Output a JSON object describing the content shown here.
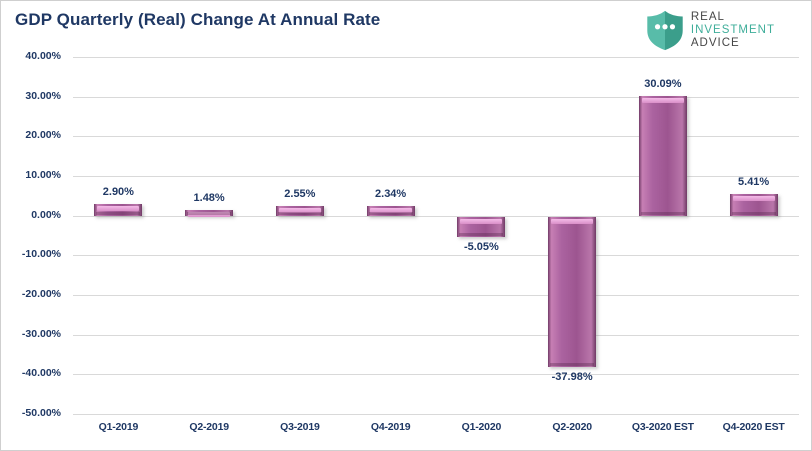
{
  "header": {
    "title": "GDP Quarterly (Real) Change At Annual Rate",
    "logo": {
      "line1": "REAL",
      "line2": "INVESTMENT",
      "line3": "ADVICE",
      "shield_color_left": "#58bca9",
      "shield_color_right": "#3b9e8b",
      "text_color_dark": "#474747",
      "text_color_teal": "#3fae9a"
    }
  },
  "chart_data": {
    "type": "bar",
    "title": "GDP Quarterly (Real) Change At Annual Rate",
    "categories": [
      "Q1-2019",
      "Q2-2019",
      "Q3-2019",
      "Q4-2019",
      "Q1-2020",
      "Q2-2020",
      "Q3-2020 EST",
      "Q4-2020 EST"
    ],
    "values": [
      2.9,
      1.48,
      2.55,
      2.34,
      -5.05,
      -37.98,
      30.09,
      5.41
    ],
    "data_labels": [
      "2.90%",
      "1.48%",
      "2.55%",
      "2.34%",
      "-5.05%",
      "-37.98%",
      "30.09%",
      "5.41%"
    ],
    "y_ticks": [
      40,
      30,
      20,
      10,
      0,
      -10,
      -20,
      -30,
      -40,
      -50
    ],
    "y_tick_labels": [
      "40.00%",
      "30.00%",
      "20.00%",
      "10.00%",
      "0.00%",
      "-10.00%",
      "-20.00%",
      "-30.00%",
      "-40.00%",
      "-50.00%"
    ],
    "ylim": [
      -50,
      40
    ],
    "xlabel": "",
    "ylabel": "",
    "grid": true,
    "legend": false,
    "bar_color": "#a8609a",
    "label_color": "#1f3864",
    "gridline_color": "#d9d9d9"
  }
}
